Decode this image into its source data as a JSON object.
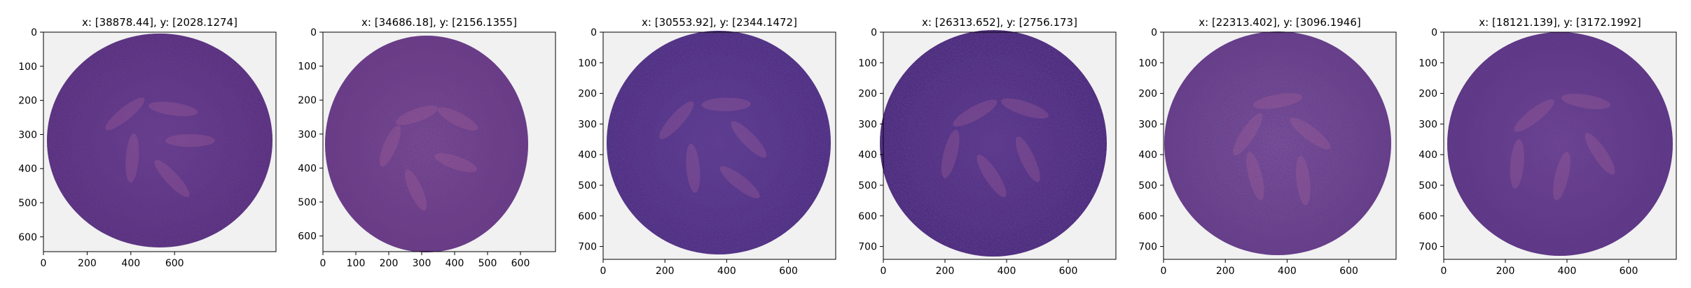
{
  "figure": {
    "panels": [
      {
        "title": "x: [38878.44], y: [2028.1274]",
        "xticks": [
          "0",
          "200",
          "400",
          "600"
        ],
        "yticks": [
          "0",
          "100",
          "200",
          "300",
          "400",
          "500",
          "600"
        ],
        "tissue_hue": "#6a3f8e",
        "tissue_edge": "#5a2f7c"
      },
      {
        "title": "x: [34686.18], y: [2156.1355]",
        "xticks": [
          "0",
          "100",
          "200",
          "300",
          "400",
          "500",
          "600"
        ],
        "yticks": [
          "0",
          "100",
          "200",
          "300",
          "400",
          "500",
          "600"
        ],
        "tissue_hue": "#7a4a90",
        "tissue_edge": "#6b3b82"
      },
      {
        "title": "x: [30553.92], y: [2344.1472]",
        "xticks": [
          "0",
          "200",
          "400",
          "600"
        ],
        "yticks": [
          "0",
          "100",
          "200",
          "300",
          "400",
          "500",
          "600",
          "700"
        ],
        "tissue_hue": "#5e3f92",
        "tissue_edge": "#4e2f82"
      },
      {
        "title": "x: [26313.652], y: [2756.173]",
        "xticks": [
          "0",
          "200",
          "400",
          "600"
        ],
        "yticks": [
          "0",
          "100",
          "200",
          "300",
          "400",
          "500",
          "600",
          "700"
        ],
        "tissue_hue": "#5d3b8d",
        "tissue_edge": "#4b2b7b"
      },
      {
        "title": "x: [22313.402], y: [3096.1946]",
        "xticks": [
          "0",
          "200",
          "400",
          "600"
        ],
        "yticks": [
          "0",
          "100",
          "200",
          "300",
          "400",
          "500",
          "600",
          "700"
        ],
        "tissue_hue": "#7a5198",
        "tissue_edge": "#673f86"
      },
      {
        "title": "x: [18121.139], y: [3172.1992]",
        "xticks": [
          "0",
          "200",
          "400",
          "600"
        ],
        "yticks": [
          "0",
          "100",
          "200",
          "300",
          "400",
          "500",
          "600",
          "700"
        ],
        "tissue_hue": "#6e4693",
        "tissue_edge": "#5c3582"
      }
    ]
  }
}
